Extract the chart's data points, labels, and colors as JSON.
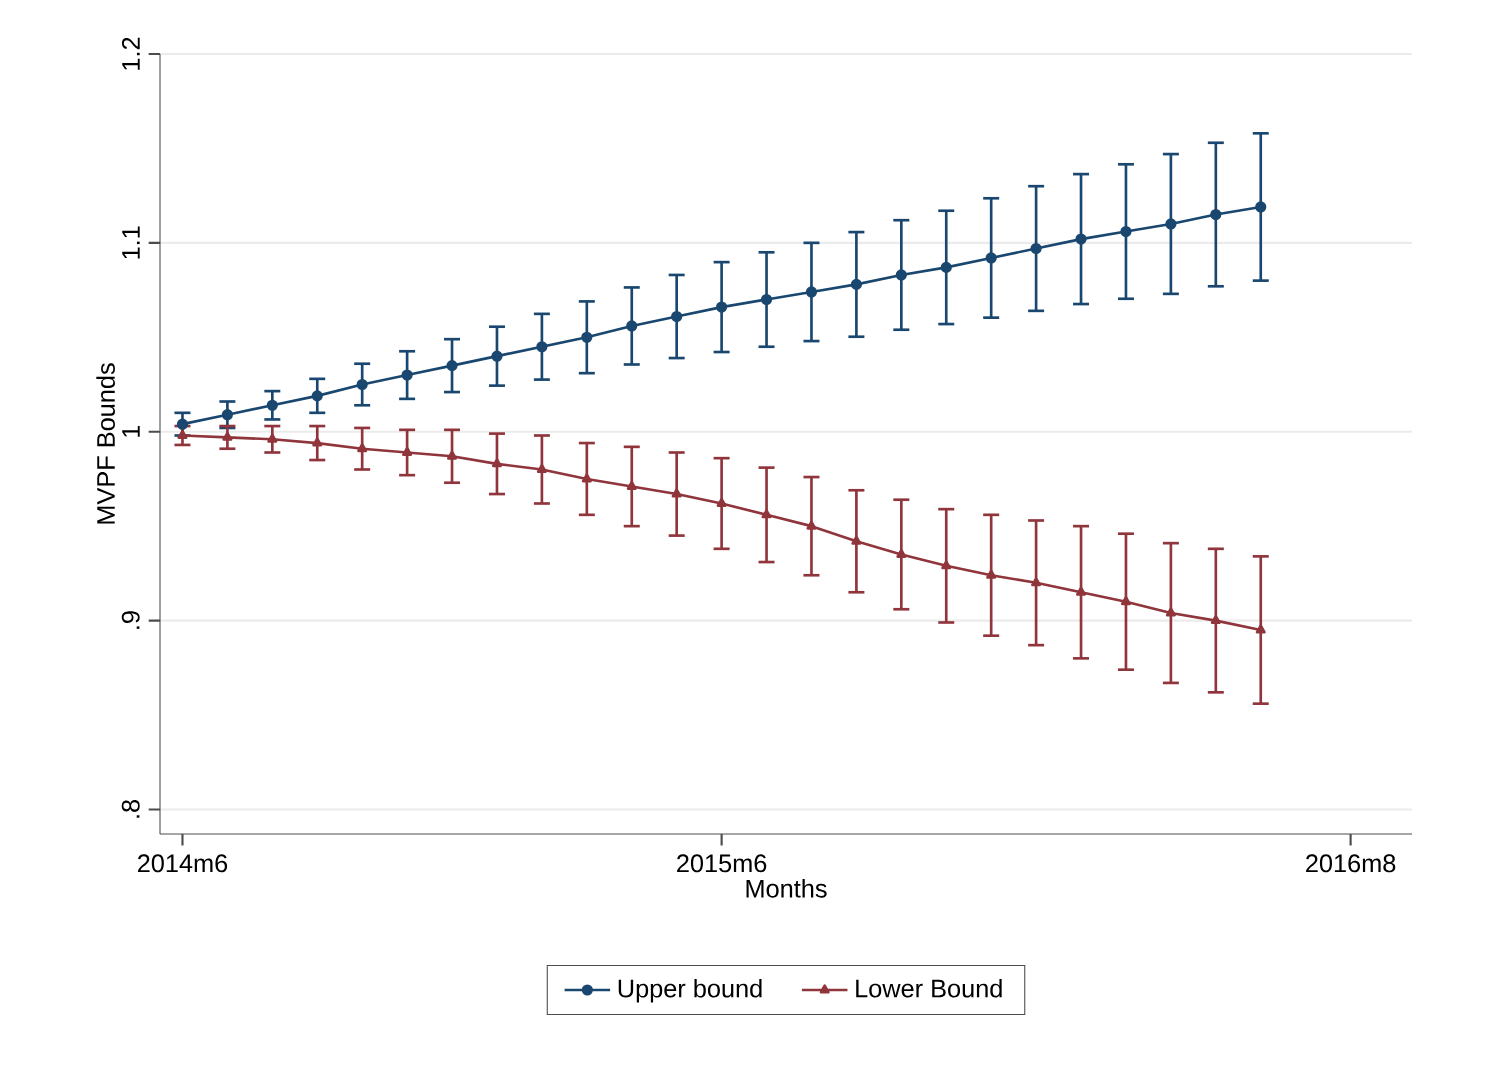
{
  "chart_data": {
    "type": "line",
    "xlabel": "Months",
    "ylabel": "MVPF Bounds",
    "x": [
      "2014-06",
      "2014-07",
      "2014-08",
      "2014-09",
      "2014-10",
      "2014-11",
      "2014-12",
      "2015-01",
      "2015-02",
      "2015-03",
      "2015-04",
      "2015-05",
      "2015-06",
      "2015-07",
      "2015-08",
      "2015-09",
      "2015-10",
      "2015-11",
      "2015-12",
      "2016-01",
      "2016-02",
      "2016-03",
      "2016-04",
      "2016-05",
      "2016-06"
    ],
    "series": [
      {
        "name": "Upper bound",
        "color": "#1a476f",
        "marker": "circle",
        "values": [
          1.004,
          1.009,
          1.014,
          1.019,
          1.025,
          1.03,
          1.035,
          1.04,
          1.045,
          1.05,
          1.056,
          1.061,
          1.066,
          1.07,
          1.074,
          1.078,
          1.083,
          1.087,
          1.092,
          1.097,
          1.102,
          1.106,
          1.11,
          1.115,
          1.119
        ],
        "errors": [
          0.006,
          0.007,
          0.0075,
          0.009,
          0.011,
          0.0126,
          0.014,
          0.0156,
          0.0174,
          0.019,
          0.0204,
          0.022,
          0.0238,
          0.025,
          0.026,
          0.0277,
          0.029,
          0.03,
          0.0316,
          0.033,
          0.0344,
          0.0356,
          0.037,
          0.038,
          0.039
        ]
      },
      {
        "name": "Lower Bound",
        "color": "#90353b",
        "marker": "triangle",
        "values": [
          0.998,
          0.997,
          0.996,
          0.994,
          0.991,
          0.989,
          0.987,
          0.983,
          0.98,
          0.975,
          0.971,
          0.967,
          0.962,
          0.956,
          0.95,
          0.942,
          0.935,
          0.929,
          0.924,
          0.92,
          0.915,
          0.91,
          0.904,
          0.9,
          0.895
        ],
        "errors": [
          0.005,
          0.006,
          0.007,
          0.009,
          0.011,
          0.012,
          0.014,
          0.016,
          0.018,
          0.019,
          0.021,
          0.022,
          0.024,
          0.025,
          0.026,
          0.027,
          0.029,
          0.03,
          0.032,
          0.033,
          0.035,
          0.036,
          0.037,
          0.038,
          0.039
        ]
      }
    ],
    "xlim": [
      "2014-05-16",
      "2016-09-12"
    ],
    "xticks": [
      {
        "value": "2014-06",
        "label": "2014m6"
      },
      {
        "value": "2015-06",
        "label": "2015m6"
      },
      {
        "value": "2016-08",
        "label": "2016m8"
      }
    ],
    "ylim": [
      0.787,
      1.2
    ],
    "yticks": [
      {
        "value": 0.8,
        "label": ".8"
      },
      {
        "value": 0.9,
        "label": ".9"
      },
      {
        "value": 1,
        "label": "1"
      },
      {
        "value": 1.1,
        "label": "1.1"
      },
      {
        "value": 1.2,
        "label": "1.2"
      }
    ],
    "grid": "y",
    "legend": "bottom",
    "line_style": "solid"
  }
}
